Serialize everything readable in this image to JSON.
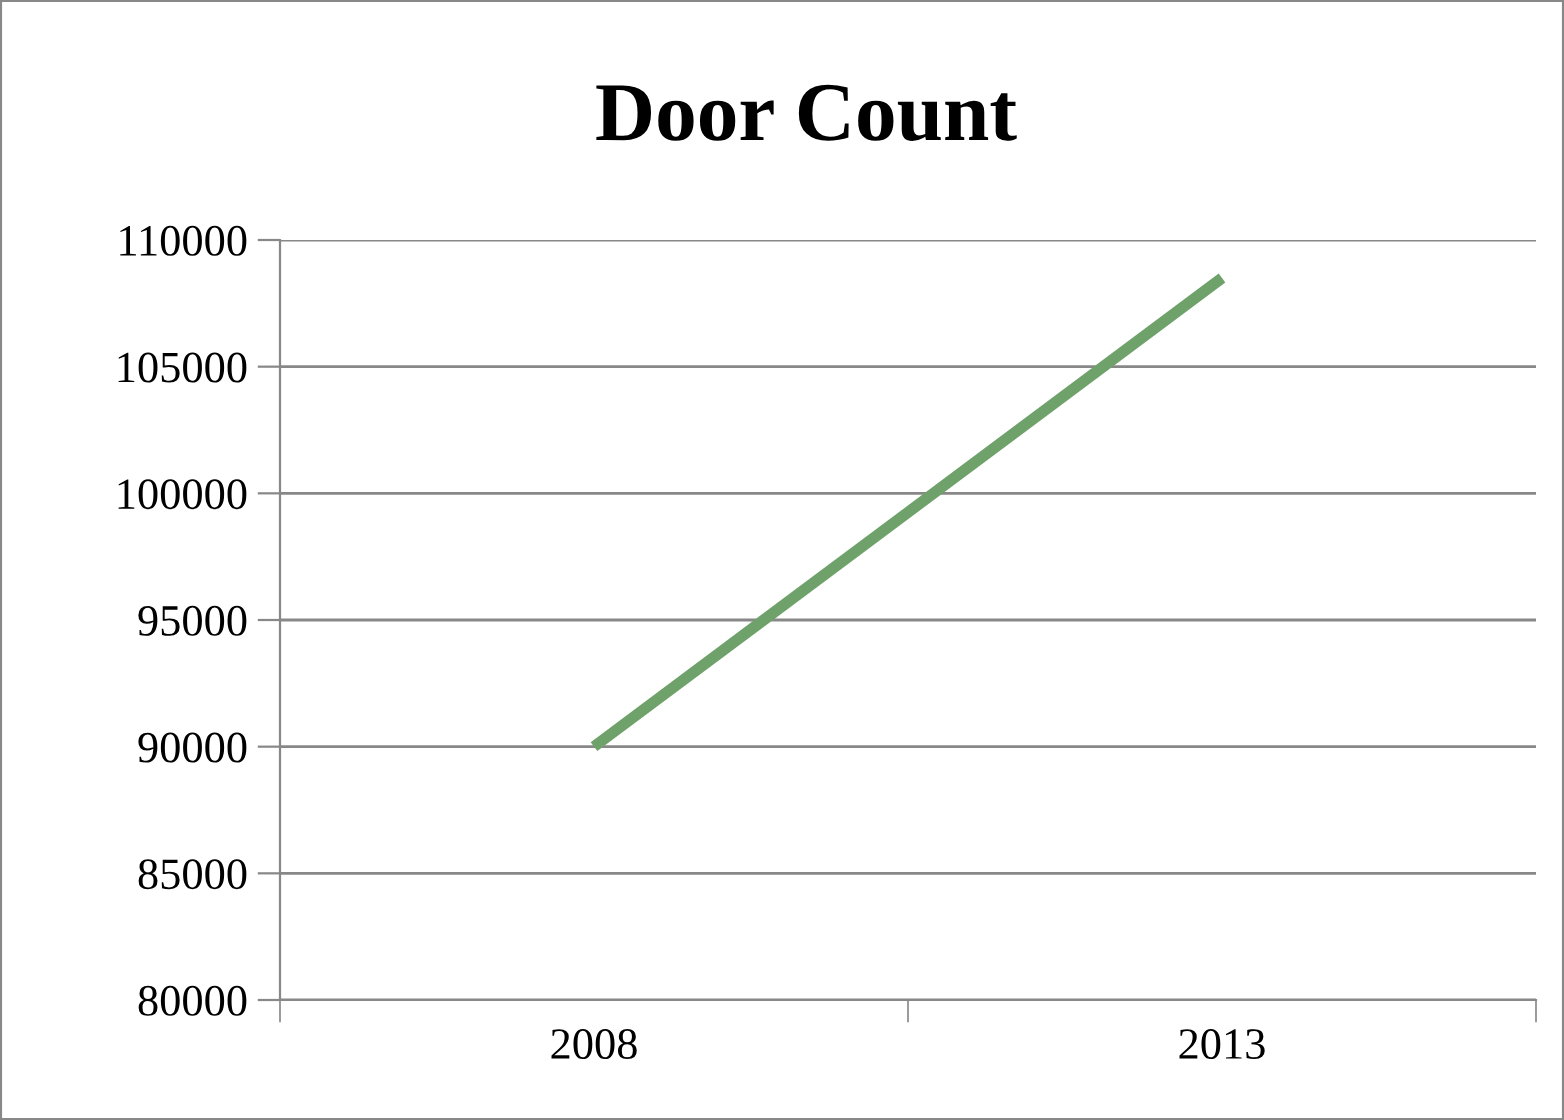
{
  "chart_data": {
    "type": "line",
    "title": "Door Count",
    "categories": [
      "2008",
      "2013"
    ],
    "series": [
      {
        "color": "#6fa26b",
        "values": [
          90000,
          108500
        ]
      }
    ],
    "ylim": [
      80000,
      110000
    ],
    "yticks": [
      80000,
      85000,
      90000,
      95000,
      100000,
      105000,
      110000
    ],
    "grid": "y",
    "marker": "none",
    "line_style": "solid"
  }
}
